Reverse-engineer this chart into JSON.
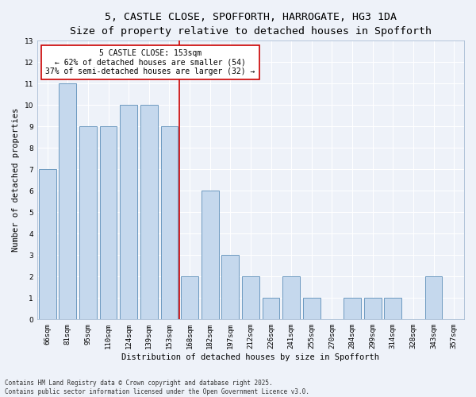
{
  "title_line1": "5, CASTLE CLOSE, SPOFFORTH, HARROGATE, HG3 1DA",
  "title_line2": "Size of property relative to detached houses in Spofforth",
  "xlabel": "Distribution of detached houses by size in Spofforth",
  "ylabel": "Number of detached properties",
  "footnote_line1": "Contains HM Land Registry data © Crown copyright and database right 2025.",
  "footnote_line2": "Contains public sector information licensed under the Open Government Licence v3.0.",
  "categories": [
    "66sqm",
    "81sqm",
    "95sqm",
    "110sqm",
    "124sqm",
    "139sqm",
    "153sqm",
    "168sqm",
    "182sqm",
    "197sqm",
    "212sqm",
    "226sqm",
    "241sqm",
    "255sqm",
    "270sqm",
    "284sqm",
    "299sqm",
    "314sqm",
    "328sqm",
    "343sqm",
    "357sqm"
  ],
  "values": [
    7,
    11,
    9,
    9,
    10,
    10,
    9,
    2,
    6,
    3,
    2,
    1,
    2,
    1,
    0,
    1,
    1,
    1,
    0,
    2,
    0
  ],
  "bar_color": "#c5d8ed",
  "bar_edge_color": "#5b8db8",
  "vline_x": 6.5,
  "annotation_text": "5 CASTLE CLOSE: 153sqm\n← 62% of detached houses are smaller (54)\n37% of semi-detached houses are larger (32) →",
  "annotation_box_color": "#ffffff",
  "annotation_box_edge_color": "#cc0000",
  "vline_color": "#cc0000",
  "ylim": [
    0,
    13
  ],
  "yticks": [
    0,
    1,
    2,
    3,
    4,
    5,
    6,
    7,
    8,
    9,
    10,
    11,
    12,
    13
  ],
  "background_color": "#eef2f9",
  "grid_color": "#ffffff",
  "title_fontsize": 9.5,
  "subtitle_fontsize": 8.5,
  "axis_label_fontsize": 7.5,
  "tick_fontsize": 6.5,
  "annotation_fontsize": 7.0,
  "footnote_fontsize": 5.5
}
